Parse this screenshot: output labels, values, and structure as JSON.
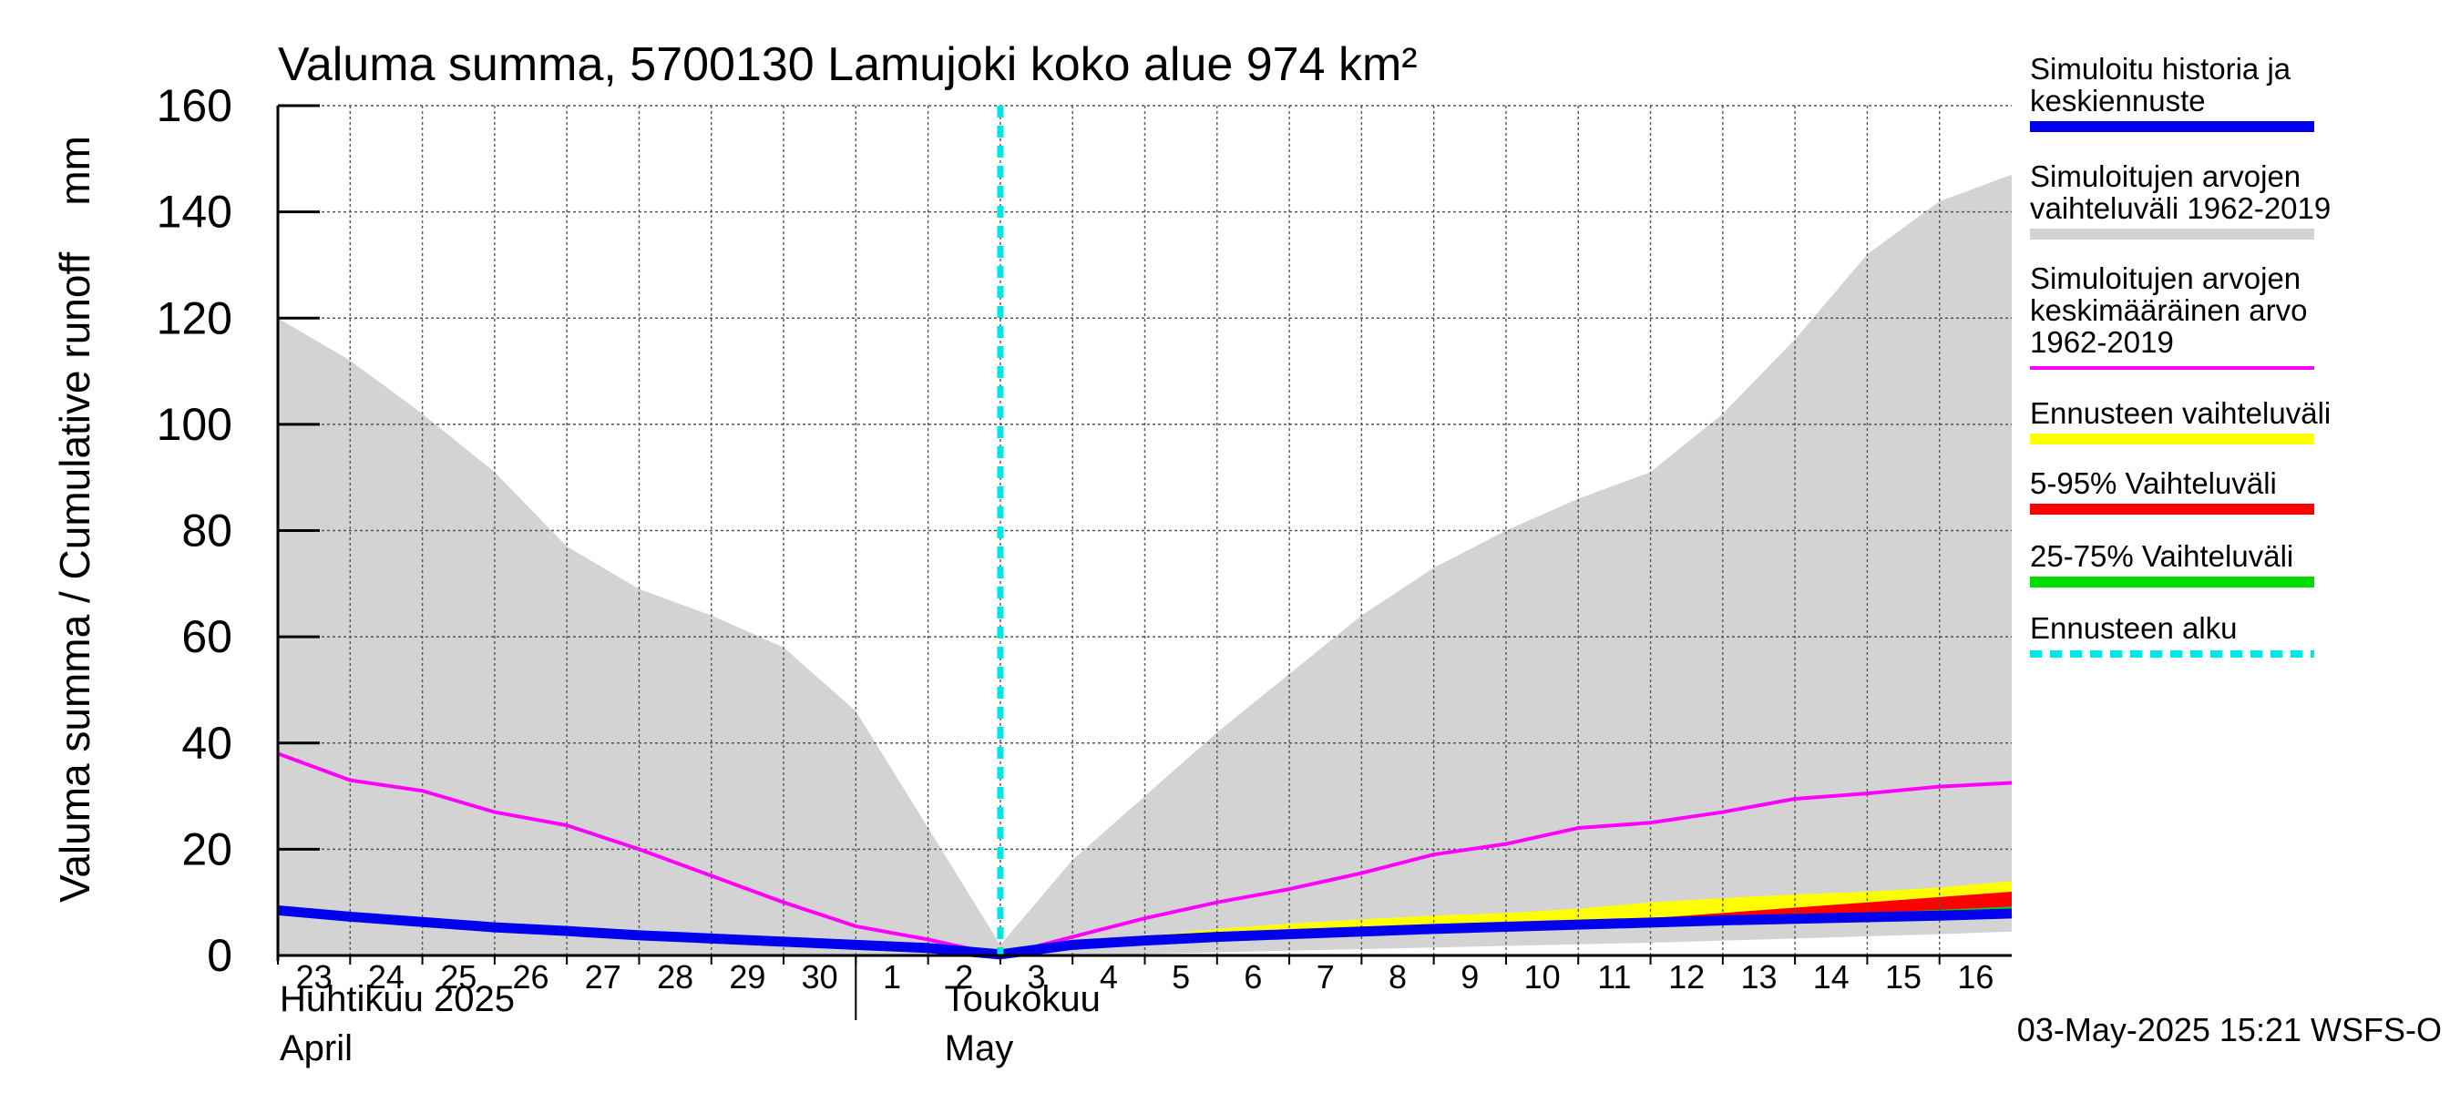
{
  "chart_data": {
    "type": "area",
    "title": "Valuma summa, 5700130 Lamujoki koko alue 974 km²",
    "ylabel": "Valuma summa / Cumulative runoff    mm",
    "ylim": [
      0,
      160
    ],
    "yticks": [
      0,
      20,
      40,
      60,
      80,
      100,
      120,
      140,
      160
    ],
    "xlim": [
      0,
      24
    ],
    "x_tick_labels": [
      "23",
      "24",
      "25",
      "26",
      "27",
      "28",
      "29",
      "30",
      "1",
      "2",
      "3",
      "4",
      "5",
      "6",
      "7",
      "8",
      "9",
      "10",
      "11",
      "12",
      "13",
      "14",
      "15",
      "16"
    ],
    "month_labels": [
      {
        "fi": "Huhtikuu  2025",
        "en": "April"
      },
      {
        "fi": "Toukokuu",
        "en": "May"
      }
    ],
    "grid": true,
    "legend_position": "right",
    "forecast_start_x": 10.0,
    "series": [
      {
        "name": "Simuloitujen arvojen vaihteluväli 1962-2019",
        "kind": "band",
        "color": "#d3d3d3",
        "x": [
          0,
          1,
          2,
          3,
          4,
          5,
          6,
          7,
          8,
          9,
          10,
          11,
          12,
          13,
          14,
          15,
          16,
          17,
          18,
          19,
          20,
          21,
          22,
          23,
          24
        ],
        "upper": [
          120,
          112,
          102,
          91,
          77,
          69,
          64,
          58,
          46,
          24,
          2,
          18,
          30,
          42,
          53,
          64,
          73,
          80,
          86,
          91,
          102,
          116,
          132,
          142,
          147
        ],
        "lower": [
          0,
          0,
          0,
          0,
          0,
          0,
          0,
          0,
          0,
          0,
          0,
          0,
          0.3,
          0.6,
          0.9,
          1.2,
          1.5,
          1.8,
          2.1,
          2.4,
          2.8,
          3.2,
          3.6,
          4.0,
          4.5
        ]
      },
      {
        "name": "Ennusteen vaihteluväli",
        "kind": "band",
        "color": "#ffff00",
        "x": [
          10,
          11,
          12,
          13,
          14,
          15,
          16,
          17,
          18,
          19,
          20,
          21,
          22,
          23,
          24
        ],
        "upper": [
          0.5,
          2.5,
          3.6,
          5,
          6,
          6.8,
          7.5,
          8,
          8.8,
          10,
          10.8,
          11.5,
          12,
          12.8,
          14
        ],
        "lower": [
          0.3,
          1.8,
          2.7,
          3.3,
          3.8,
          4.2,
          4.6,
          5,
          5.4,
          5.7,
          6,
          6.3,
          6.5,
          6.7,
          7
        ]
      },
      {
        "name": "5-95% Vaihteluväli",
        "kind": "band",
        "color": "#ff0000",
        "x": [
          10,
          11,
          12,
          13,
          14,
          15,
          16,
          17,
          18,
          19,
          20,
          21,
          22,
          23,
          24
        ],
        "upper": [
          0.4,
          2.2,
          3.1,
          4,
          4.6,
          5,
          5.5,
          6,
          6.5,
          7,
          8,
          9,
          10,
          11,
          12
        ],
        "lower": [
          0.3,
          1.9,
          2.8,
          3.5,
          4,
          4.4,
          4.8,
          5.2,
          5.6,
          6,
          6.3,
          6.6,
          6.9,
          7.1,
          7.3
        ]
      },
      {
        "name": "25-75% Vaihteluväli",
        "kind": "band",
        "color": "#00dd00",
        "x": [
          10,
          11,
          12,
          13,
          14,
          15,
          16,
          17,
          18,
          19,
          20,
          21,
          22,
          23,
          24
        ],
        "upper": [
          0.4,
          2.1,
          2.9,
          3.7,
          4.2,
          4.7,
          5.1,
          5.5,
          6,
          6.5,
          7,
          7.5,
          8,
          8.6,
          9.2
        ],
        "lower": [
          0.3,
          2.0,
          2.8,
          3.5,
          4.0,
          4.5,
          4.9,
          5.3,
          5.7,
          6.1,
          6.5,
          6.8,
          7.1,
          7.4,
          7.7
        ]
      },
      {
        "name": "Simuloitujen arvojen keskimääräinen arvo 1962-2019",
        "kind": "line",
        "color": "#ff00ff",
        "x": [
          0,
          1,
          2,
          3,
          4,
          5,
          6,
          7,
          8,
          9,
          10,
          11,
          12,
          13,
          14,
          15,
          16,
          17,
          18,
          19,
          20,
          21,
          22,
          23,
          24
        ],
        "y": [
          38,
          33,
          31,
          27,
          24.5,
          20,
          15,
          10,
          5.5,
          3,
          0,
          3.5,
          7,
          10,
          12.5,
          15.5,
          19,
          21,
          24,
          25,
          27,
          29.5,
          30.5,
          31.8,
          32.5
        ]
      },
      {
        "name": "Simuloitu historia ja keskiennuste",
        "kind": "line",
        "color": "#0000ee",
        "x": [
          0,
          1,
          2,
          3,
          4,
          5,
          6,
          7,
          8,
          9,
          10,
          11,
          12,
          13,
          14,
          15,
          16,
          17,
          18,
          19,
          20,
          21,
          22,
          23,
          24
        ],
        "y": [
          8.5,
          7.3,
          6.3,
          5.3,
          4.6,
          3.8,
          3.2,
          2.6,
          2,
          1.4,
          0.2,
          2.0,
          2.8,
          3.5,
          4.0,
          4.5,
          5.0,
          5.4,
          5.8,
          6.2,
          6.6,
          6.9,
          7.2,
          7.5,
          7.9
        ]
      }
    ]
  },
  "legend": [
    {
      "label": "Simuloitu historia ja\nkeskiennuste",
      "color": "#0000ee",
      "style": "solid"
    },
    {
      "label": "Simuloitujen arvojen\nvaihteluväli 1962-2019",
      "color": "#d3d3d3",
      "style": "solid"
    },
    {
      "label": "Simuloitujen arvojen\nkeskimääräinen arvo\n   1962-2019",
      "color": "#ff00ff",
      "style": "thin"
    },
    {
      "label": "Ennusteen vaihteluväli",
      "color": "#ffff00",
      "style": "solid"
    },
    {
      "label": "5-95% Vaihteluväli",
      "color": "#ff0000",
      "style": "solid"
    },
    {
      "label": "25-75% Vaihteluväli",
      "color": "#00dd00",
      "style": "solid"
    },
    {
      "label": "Ennusteen alku",
      "color": "#00e5e5",
      "style": "dashed"
    }
  ],
  "footer": "03-May-2025 15:21 WSFS-O"
}
